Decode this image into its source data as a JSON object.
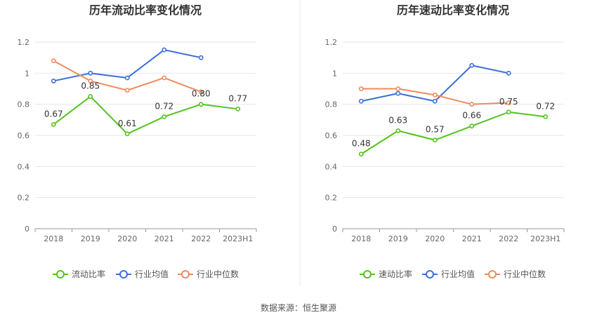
{
  "chart_data": [
    {
      "type": "line",
      "title": "历年流动比率变化情况",
      "categories": [
        "2018",
        "2019",
        "2020",
        "2021",
        "2022",
        "2023H1"
      ],
      "ylim": [
        0,
        1.2
      ],
      "yticks": [
        "0",
        "0.2",
        "0.4",
        "0.6",
        "0.8",
        "1",
        "1.2"
      ],
      "series": [
        {
          "name": "流动比率",
          "color": "#52c41a",
          "values": [
            0.67,
            0.85,
            0.61,
            0.72,
            0.8,
            0.77
          ],
          "labels": [
            "0.67",
            "0.85",
            "0.61",
            "0.72",
            "0.80",
            "0.77"
          ]
        },
        {
          "name": "行业均值",
          "color": "#3b6fd8",
          "values": [
            0.95,
            1.0,
            0.97,
            1.15,
            1.1,
            null
          ]
        },
        {
          "name": "行业中位数",
          "color": "#f08a5d",
          "values": [
            1.08,
            0.95,
            0.89,
            0.97,
            0.88,
            null
          ]
        }
      ]
    },
    {
      "type": "line",
      "title": "历年速动比率变化情况",
      "categories": [
        "2018",
        "2019",
        "2020",
        "2021",
        "2022",
        "2023H1"
      ],
      "ylim": [
        0,
        1.2
      ],
      "yticks": [
        "0",
        "0.2",
        "0.4",
        "0.6",
        "0.8",
        "1",
        "1.2"
      ],
      "series": [
        {
          "name": "速动比率",
          "color": "#52c41a",
          "values": [
            0.48,
            0.63,
            0.57,
            0.66,
            0.75,
            0.72
          ],
          "labels": [
            "0.48",
            "0.63",
            "0.57",
            "0.66",
            "0.75",
            "0.72"
          ]
        },
        {
          "name": "行业均值",
          "color": "#3b6fd8",
          "values": [
            0.82,
            0.87,
            0.82,
            1.05,
            1.0,
            null
          ]
        },
        {
          "name": "行业中位数",
          "color": "#f08a5d",
          "values": [
            0.9,
            0.9,
            0.86,
            0.8,
            0.81,
            null
          ]
        }
      ]
    }
  ],
  "source": "数据来源：恒生聚源"
}
